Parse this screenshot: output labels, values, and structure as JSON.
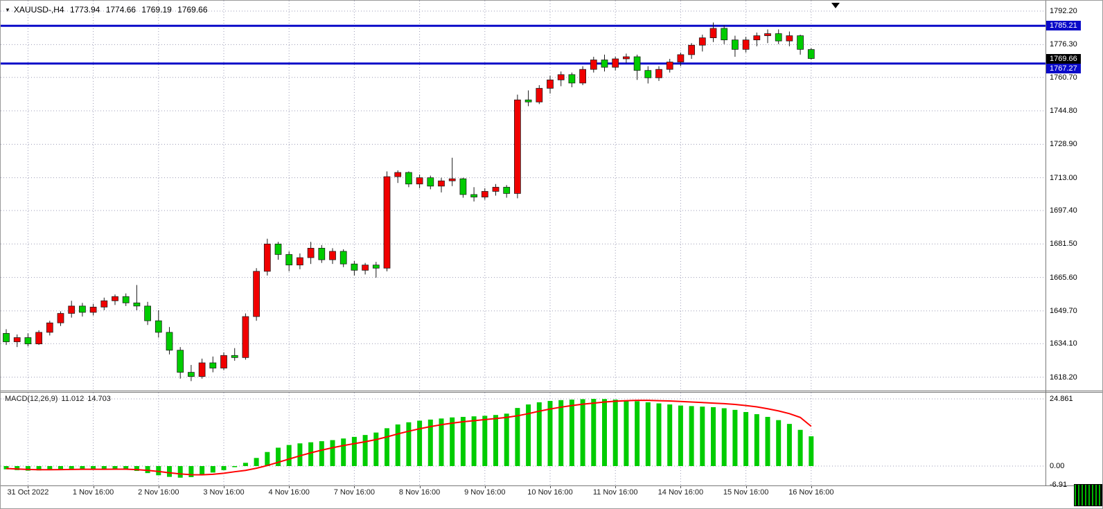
{
  "header": {
    "symbol": "XAUUSD-,H4",
    "open": "1773.94",
    "high": "1774.66",
    "low": "1769.19",
    "close": "1769.66"
  },
  "macd_label": {
    "name": "MACD(12,26,9)",
    "value_main": "11.012",
    "value_signal": "14.703"
  },
  "colors": {
    "bull": "#F00000",
    "bear": "#00CC00",
    "wick": "#1a1a1a",
    "grid": "#9a9ab4",
    "hline": "#0A0AC8",
    "macd_bar": "#00CC00",
    "macd_signal": "#FF0000",
    "badge_last_bg": "#000000",
    "badge_line_bg": "#0A0AC8",
    "axis_text": "#000000"
  },
  "chart_data": {
    "type": "candlestick",
    "symbol": "XAUUSD-",
    "timeframe": "H4",
    "title": "XAUUSD-,H4 1773.94 1774.66 1769.19 1769.66",
    "ylim_price": [
      1611.8,
      1797.15
    ],
    "ylim_macd": [
      -6.91,
      24.861
    ],
    "price_axis_ticks": [
      "1792.20",
      "1776.30",
      "1760.70",
      "1744.80",
      "1728.90",
      "1713.00",
      "1697.40",
      "1681.50",
      "1665.60",
      "1649.70",
      "1634.10",
      "1618.20"
    ],
    "macd_axis_ticks": [
      {
        "label": "24.861",
        "value": 24.861
      },
      {
        "label": "0.00",
        "value": 0
      },
      {
        "label": "-6.91",
        "value": -6.91
      }
    ],
    "time_labels": [
      {
        "label": "31 Oct 2022",
        "index": 2
      },
      {
        "label": "1 Nov 16:00",
        "index": 8
      },
      {
        "label": "2 Nov 16:00",
        "index": 14
      },
      {
        "label": "3 Nov 16:00",
        "index": 20
      },
      {
        "label": "4 Nov 16:00",
        "index": 26
      },
      {
        "label": "7 Nov 16:00",
        "index": 32
      },
      {
        "label": "8 Nov 16:00",
        "index": 38
      },
      {
        "label": "9 Nov 16:00",
        "index": 44
      },
      {
        "label": "10 Nov 16:00",
        "index": 50
      },
      {
        "label": "11 Nov 16:00",
        "index": 56
      },
      {
        "label": "14 Nov 16:00",
        "index": 62
      },
      {
        "label": "15 Nov 16:00",
        "index": 68
      },
      {
        "label": "16 Nov 16:00",
        "index": 74
      }
    ],
    "hlines": [
      {
        "label": "1785.21",
        "price": 1785.21
      },
      {
        "label": "1767.27",
        "price": 1767.27
      }
    ],
    "last_price": {
      "label": "1769.66",
      "price": 1769.66
    },
    "candles": [
      [
        1639.0,
        1641.0,
        1633.5,
        1635.0
      ],
      [
        1635.0,
        1638.5,
        1632.5,
        1637.0
      ],
      [
        1637.0,
        1639.0,
        1632.8,
        1634.0
      ],
      [
        1634.0,
        1640.5,
        1633.5,
        1639.5
      ],
      [
        1639.5,
        1645.0,
        1638.0,
        1644.0
      ],
      [
        1644.0,
        1649.5,
        1642.5,
        1648.5
      ],
      [
        1648.5,
        1654.5,
        1646.5,
        1652.0
      ],
      [
        1652.0,
        1653.5,
        1647.0,
        1649.0
      ],
      [
        1649.0,
        1653.0,
        1647.5,
        1651.5
      ],
      [
        1651.5,
        1656.0,
        1650.0,
        1654.5
      ],
      [
        1654.5,
        1657.5,
        1652.5,
        1656.5
      ],
      [
        1656.5,
        1658.0,
        1652.0,
        1653.5
      ],
      [
        1653.5,
        1662.0,
        1650.0,
        1652.0
      ],
      [
        1652.0,
        1654.0,
        1643.0,
        1645.0
      ],
      [
        1645.0,
        1650.0,
        1637.0,
        1639.5
      ],
      [
        1639.5,
        1642.0,
        1629.0,
        1631.0
      ],
      [
        1631.0,
        1632.5,
        1617.5,
        1620.5
      ],
      [
        1620.5,
        1624.0,
        1616.3,
        1618.5
      ],
      [
        1618.5,
        1627.0,
        1617.5,
        1625.0
      ],
      [
        1625.0,
        1628.0,
        1620.5,
        1622.5
      ],
      [
        1622.5,
        1630.0,
        1621.5,
        1628.5
      ],
      [
        1628.5,
        1632.0,
        1626.0,
        1627.5
      ],
      [
        1627.5,
        1648.5,
        1626.5,
        1647.0
      ],
      [
        1647.0,
        1670.0,
        1645.0,
        1668.5
      ],
      [
        1668.5,
        1684.0,
        1666.5,
        1681.5
      ],
      [
        1681.5,
        1682.5,
        1674.0,
        1676.5
      ],
      [
        1676.5,
        1678.0,
        1668.5,
        1671.5
      ],
      [
        1671.5,
        1677.0,
        1669.5,
        1675.0
      ],
      [
        1675.0,
        1682.5,
        1672.0,
        1679.5
      ],
      [
        1679.5,
        1681.0,
        1672.5,
        1674.0
      ],
      [
        1674.0,
        1679.5,
        1672.0,
        1678.0
      ],
      [
        1678.0,
        1679.0,
        1670.5,
        1672.0
      ],
      [
        1672.0,
        1673.5,
        1666.5,
        1669.0
      ],
      [
        1669.0,
        1672.5,
        1667.0,
        1671.5
      ],
      [
        1671.5,
        1673.0,
        1665.5,
        1670.0
      ],
      [
        1670.0,
        1716.0,
        1668.5,
        1713.5
      ],
      [
        1713.5,
        1716.5,
        1710.5,
        1715.5
      ],
      [
        1715.5,
        1716.0,
        1708.5,
        1710.0
      ],
      [
        1710.0,
        1714.5,
        1708.0,
        1713.0
      ],
      [
        1713.0,
        1714.0,
        1707.5,
        1709.0
      ],
      [
        1709.0,
        1713.0,
        1706.0,
        1711.5
      ],
      [
        1711.5,
        1722.5,
        1709.0,
        1712.5
      ],
      [
        1712.5,
        1713.0,
        1703.5,
        1705.0
      ],
      [
        1705.0,
        1708.5,
        1701.7,
        1703.8
      ],
      [
        1703.8,
        1708.0,
        1702.5,
        1706.5
      ],
      [
        1706.5,
        1710.0,
        1704.5,
        1708.5
      ],
      [
        1708.5,
        1709.5,
        1703.5,
        1705.5
      ],
      [
        1705.5,
        1752.5,
        1703.2,
        1750.0
      ],
      [
        1750.0,
        1754.5,
        1747.0,
        1749.0
      ],
      [
        1749.0,
        1757.0,
        1748.0,
        1755.5
      ],
      [
        1755.5,
        1761.5,
        1753.0,
        1759.5
      ],
      [
        1759.5,
        1763.5,
        1756.5,
        1762.0
      ],
      [
        1762.0,
        1763.0,
        1756.0,
        1758.0
      ],
      [
        1758.0,
        1766.0,
        1757.0,
        1764.5
      ],
      [
        1764.5,
        1770.5,
        1763.0,
        1769.0
      ],
      [
        1769.0,
        1771.5,
        1763.5,
        1765.5
      ],
      [
        1765.5,
        1770.5,
        1764.0,
        1769.5
      ],
      [
        1769.5,
        1772.0,
        1767.5,
        1770.5
      ],
      [
        1770.5,
        1771.5,
        1759.5,
        1764.0
      ],
      [
        1764.0,
        1766.0,
        1757.8,
        1760.5
      ],
      [
        1760.5,
        1766.0,
        1759.0,
        1764.5
      ],
      [
        1764.5,
        1769.5,
        1763.0,
        1768.0
      ],
      [
        1768.0,
        1772.5,
        1766.0,
        1771.5
      ],
      [
        1771.5,
        1777.0,
        1769.5,
        1776.0
      ],
      [
        1776.0,
        1781.0,
        1773.0,
        1779.5
      ],
      [
        1779.5,
        1786.8,
        1777.5,
        1784.0
      ],
      [
        1784.0,
        1785.5,
        1776.5,
        1778.5
      ],
      [
        1778.5,
        1780.5,
        1770.5,
        1774.0
      ],
      [
        1774.0,
        1780.0,
        1772.5,
        1778.5
      ],
      [
        1778.5,
        1782.0,
        1775.5,
        1780.5
      ],
      [
        1780.5,
        1783.5,
        1777.0,
        1781.5
      ],
      [
        1781.5,
        1783.5,
        1776.5,
        1778.0
      ],
      [
        1778.0,
        1782.5,
        1775.5,
        1780.5
      ],
      [
        1780.5,
        1781.0,
        1771.5,
        1774.0
      ],
      [
        1773.94,
        1774.66,
        1769.19,
        1769.66
      ]
    ],
    "macd": {
      "histogram": [
        -1.2,
        -1.5,
        -1.7,
        -1.6,
        -1.4,
        -1.2,
        -1.0,
        -1.1,
        -1.3,
        -1.2,
        -1.0,
        -1.2,
        -1.8,
        -2.6,
        -3.4,
        -4.0,
        -4.3,
        -4.1,
        -3.4,
        -2.4,
        -1.5,
        -0.4,
        1.2,
        3.0,
        5.2,
        6.8,
        7.8,
        8.4,
        8.8,
        9.2,
        9.6,
        10.2,
        10.8,
        11.5,
        12.4,
        14.0,
        15.4,
        16.2,
        16.8,
        17.2,
        17.6,
        18.0,
        18.2,
        18.4,
        18.6,
        18.9,
        19.4,
        21.5,
        22.8,
        23.6,
        24.1,
        24.4,
        24.6,
        24.75,
        24.861,
        24.8,
        24.6,
        24.3,
        24.0,
        23.6,
        23.2,
        22.8,
        22.4,
        22.2,
        22.0,
        21.8,
        21.4,
        20.8,
        20.0,
        19.2,
        18.2,
        17.0,
        15.6,
        13.4,
        11.012
      ],
      "signal": [
        -0.9,
        -1.1,
        -1.25,
        -1.35,
        -1.35,
        -1.3,
        -1.25,
        -1.2,
        -1.2,
        -1.2,
        -1.15,
        -1.15,
        -1.3,
        -1.6,
        -2.0,
        -2.5,
        -2.9,
        -3.2,
        -3.25,
        -3.05,
        -2.65,
        -2.1,
        -1.6,
        -0.8,
        0.2,
        1.4,
        2.6,
        3.8,
        4.9,
        5.9,
        6.8,
        7.6,
        8.3,
        9.0,
        9.8,
        10.8,
        11.9,
        12.9,
        13.8,
        14.6,
        15.3,
        15.9,
        16.4,
        16.8,
        17.2,
        17.6,
        18.0,
        18.6,
        19.4,
        20.3,
        21.1,
        21.8,
        22.4,
        22.9,
        23.3,
        23.7,
        24.0,
        24.2,
        24.3,
        24.3,
        24.2,
        24.1,
        23.9,
        23.7,
        23.5,
        23.3,
        23.1,
        22.8,
        22.4,
        21.9,
        21.2,
        20.4,
        19.4,
        18.0,
        14.703
      ]
    }
  }
}
